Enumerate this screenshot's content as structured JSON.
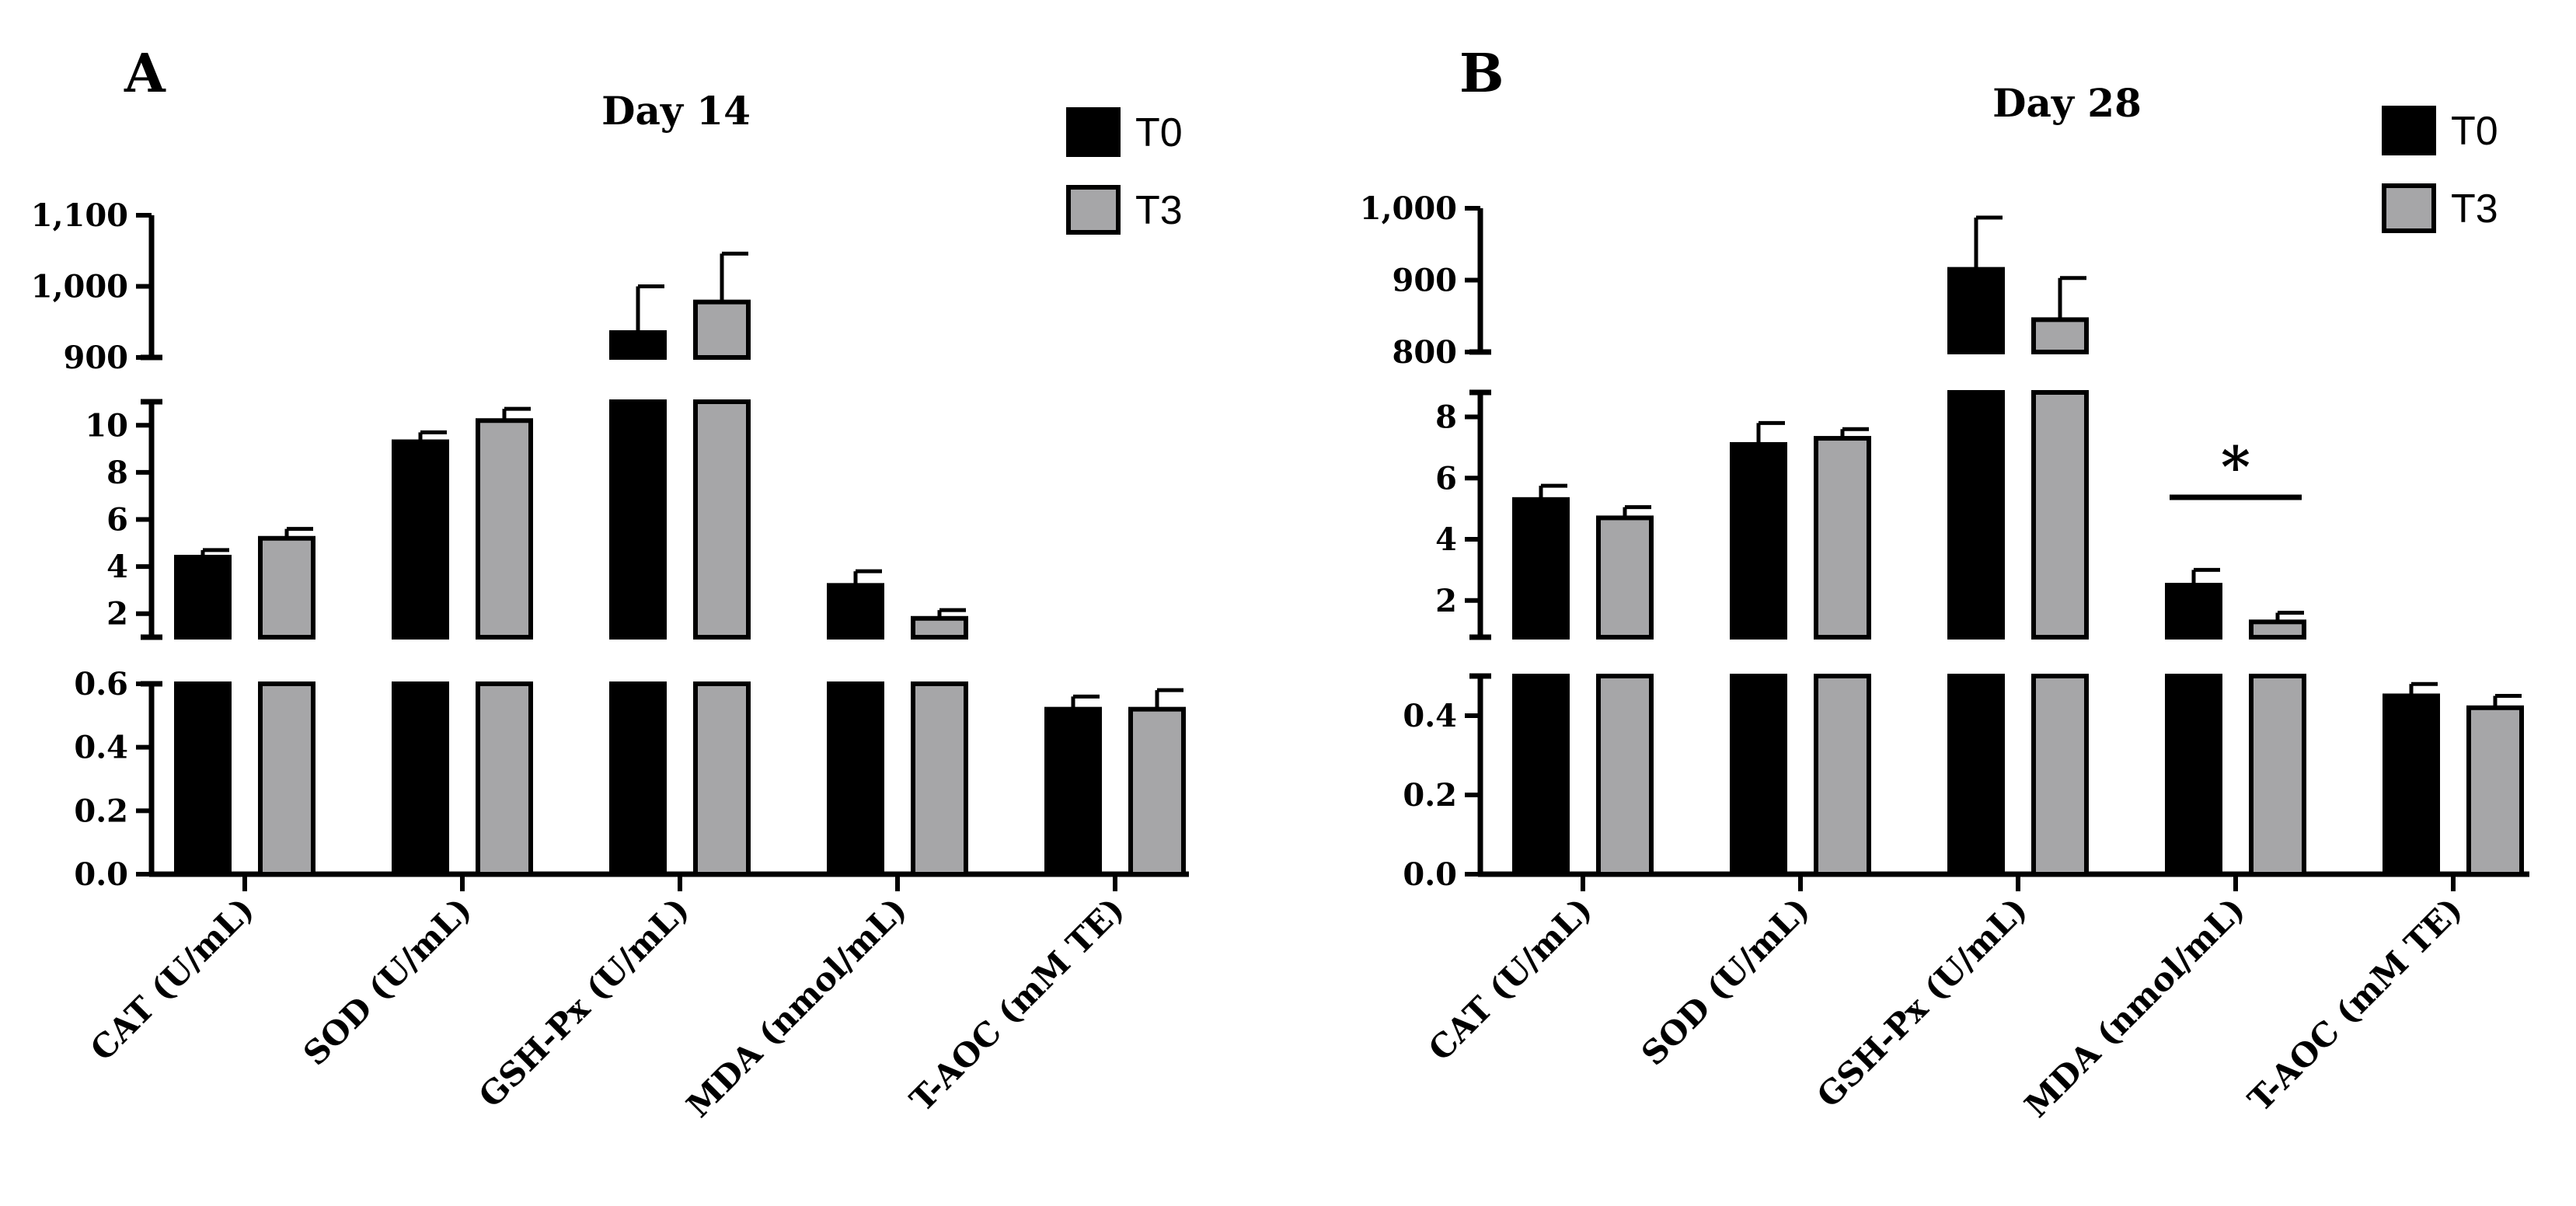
{
  "chart_data": [
    {
      "panel_label": "A",
      "type": "bar",
      "title": "Day 14",
      "categories": [
        "CAT (U/mL)",
        "SOD (U/mL)",
        "GSH-Px (U/mL)",
        "MDA (nmol/mL)",
        "T-AOC (mM TE)"
      ],
      "series": [
        {
          "name": "T0",
          "color": "#000000",
          "values": [
            4.4,
            9.3,
            935,
            3.2,
            0.52
          ],
          "errors": [
            0.3,
            0.4,
            65,
            0.6,
            0.04
          ]
        },
        {
          "name": "T3",
          "color": "#a6a6a8",
          "values": [
            5.2,
            10.2,
            978,
            1.8,
            0.52
          ],
          "errors": [
            0.4,
            0.5,
            68,
            0.35,
            0.06
          ]
        }
      ],
      "segments": [
        {
          "range": [
            0,
            0.6
          ],
          "ticks": [
            0.0,
            0.2,
            0.4,
            0.6
          ],
          "tick_labels": [
            "0.0",
            "0.2",
            "0.4",
            "0.6"
          ]
        },
        {
          "range": [
            1,
            11
          ],
          "ticks": [
            2,
            4,
            6,
            8,
            10
          ],
          "tick_labels": [
            "2",
            "4",
            "6",
            "8",
            "10"
          ]
        },
        {
          "range": [
            900,
            1100
          ],
          "ticks": [
            900,
            1000,
            1100
          ],
          "tick_labels": [
            "900",
            "1,000",
            "1,100"
          ]
        }
      ],
      "legend": [
        "T0",
        "T3"
      ],
      "legend_position": "top-right",
      "annotations": []
    },
    {
      "panel_label": "B",
      "type": "bar",
      "title": "Day 28",
      "categories": [
        "CAT (U/mL)",
        "SOD (U/mL)",
        "GSH-Px (U/mL)",
        "MDA (nmol/mL)",
        "T-AOC (mM TE)"
      ],
      "series": [
        {
          "name": "T0",
          "color": "#000000",
          "values": [
            5.3,
            7.1,
            915,
            2.5,
            0.45
          ],
          "errors": [
            0.45,
            0.7,
            72,
            0.5,
            0.03
          ]
        },
        {
          "name": "T3",
          "color": "#a6a6a8",
          "values": [
            4.7,
            7.3,
            845,
            1.3,
            0.42
          ],
          "errors": [
            0.35,
            0.3,
            58,
            0.3,
            0.03
          ]
        }
      ],
      "segments": [
        {
          "range": [
            0,
            0.5
          ],
          "ticks": [
            0.0,
            0.2,
            0.4
          ],
          "tick_labels": [
            "0.0",
            "0.2",
            "0.4"
          ]
        },
        {
          "range": [
            0.8,
            8.8
          ],
          "ticks": [
            2,
            4,
            6,
            8
          ],
          "tick_labels": [
            "2",
            "4",
            "6",
            "8"
          ]
        },
        {
          "range": [
            800,
            1000
          ],
          "ticks": [
            800,
            900,
            1000
          ],
          "tick_labels": [
            "800",
            "900",
            "1,000"
          ]
        }
      ],
      "legend": [
        "T0",
        "T3"
      ],
      "legend_position": "top-right",
      "annotations": [
        {
          "category": "MDA (nmol/mL)",
          "text": "*"
        }
      ]
    }
  ]
}
